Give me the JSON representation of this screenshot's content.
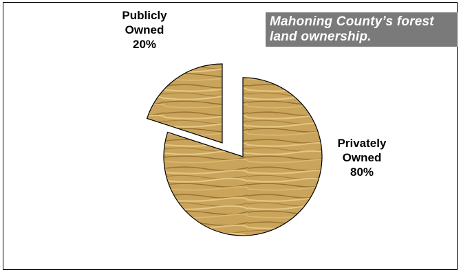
{
  "chart_data": {
    "type": "pie",
    "title": "Mahoning County’s forest land ownership.",
    "title_lines": [
      "Mahoning County’s forest",
      "land ownership."
    ],
    "categories": [
      "Privately Owned",
      "Publicly Owned"
    ],
    "values": [
      80,
      20
    ],
    "labels": [
      {
        "lines": [
          "Privately",
          "Owned",
          "80%"
        ]
      },
      {
        "lines": [
          "Publicly",
          "Owned",
          "20%"
        ]
      }
    ],
    "exploded": "Publicly Owned",
    "legend": "none",
    "colors": {
      "fill": "#c9a45a",
      "grain_dark": "#8a6526",
      "grain_light": "#e6c886",
      "stroke": "#000000"
    }
  }
}
